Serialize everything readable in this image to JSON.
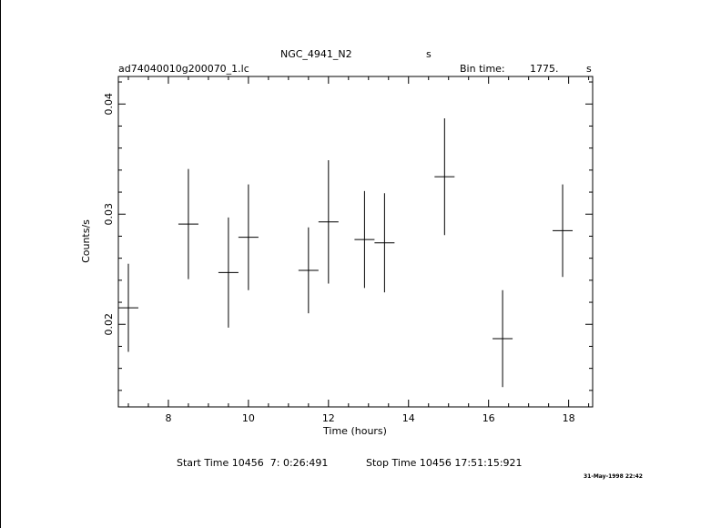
{
  "header": {
    "object": "NGC_4941_N2",
    "object_unit": "s",
    "filename": "ad74040010g200070_1.lc",
    "bin_label": "Bin time:",
    "bin_value": "1775.",
    "bin_unit": "s"
  },
  "footer": {
    "start_label": "Start Time 10456  7: 0:26:491",
    "stop_label": "Stop Time 10456 17:51:15:921",
    "timestamp": "31-May-1998 22:42"
  },
  "chart_data": {
    "type": "scatter",
    "xlabel": "Time (hours)",
    "ylabel": "Counts/s",
    "xlim": [
      6.75,
      18.6
    ],
    "ylim": [
      0.0125,
      0.0425
    ],
    "x_ticks": [
      8,
      10,
      12,
      14,
      16,
      18
    ],
    "y_ticks": [
      0.02,
      0.03,
      0.04
    ],
    "grid": false,
    "series": [
      {
        "points": [
          {
            "x": 7.0,
            "xerr": 0.25,
            "y": 0.0215,
            "yerr": 0.004
          },
          {
            "x": 8.5,
            "xerr": 0.25,
            "y": 0.0291,
            "yerr": 0.005
          },
          {
            "x": 9.5,
            "xerr": 0.25,
            "y": 0.0247,
            "yerr": 0.005
          },
          {
            "x": 10.0,
            "xerr": 0.25,
            "y": 0.0279,
            "yerr": 0.0048
          },
          {
            "x": 11.5,
            "xerr": 0.25,
            "y": 0.0249,
            "yerr": 0.0039
          },
          {
            "x": 12.0,
            "xerr": 0.25,
            "y": 0.0293,
            "yerr": 0.0056
          },
          {
            "x": 12.9,
            "xerr": 0.25,
            "y": 0.0277,
            "yerr": 0.0044
          },
          {
            "x": 13.4,
            "xerr": 0.25,
            "y": 0.0274,
            "yerr": 0.0045
          },
          {
            "x": 14.9,
            "xerr": 0.25,
            "y": 0.0334,
            "yerr": 0.0053
          },
          {
            "x": 16.35,
            "xerr": 0.25,
            "y": 0.0187,
            "yerr": 0.0044
          },
          {
            "x": 17.85,
            "xerr": 0.25,
            "y": 0.0285,
            "yerr": 0.0042
          }
        ]
      }
    ]
  }
}
